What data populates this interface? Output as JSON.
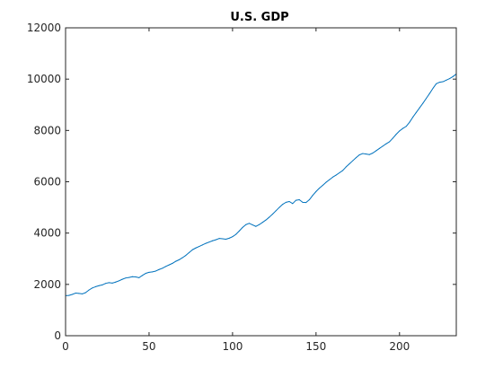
{
  "figure": {
    "background": "#ffffff",
    "axes_color": "#262626",
    "line_color": "#0072bd"
  },
  "chart_data": {
    "type": "line",
    "title": "U.S. GDP",
    "xlabel": "",
    "ylabel": "",
    "xlim": [
      0,
      234
    ],
    "ylim": [
      0,
      12000
    ],
    "x_ticks": [
      0,
      50,
      100,
      150,
      200
    ],
    "y_ticks": [
      0,
      2000,
      4000,
      6000,
      8000,
      10000,
      12000
    ],
    "grid": false,
    "legend": "none",
    "series": [
      {
        "x": [
          0,
          2,
          4,
          6,
          8,
          10,
          12,
          14,
          16,
          18,
          20,
          22,
          24,
          26,
          28,
          30,
          32,
          34,
          36,
          38,
          40,
          42,
          44,
          46,
          48,
          50,
          52,
          54,
          56,
          58,
          60,
          62,
          64,
          66,
          68,
          70,
          72,
          74,
          76,
          78,
          80,
          82,
          84,
          86,
          88,
          90,
          92,
          94,
          96,
          98,
          100,
          102,
          104,
          106,
          108,
          110,
          112,
          114,
          116,
          118,
          120,
          122,
          124,
          126,
          128,
          130,
          132,
          134,
          136,
          138,
          140,
          142,
          144,
          146,
          148,
          150,
          152,
          154,
          156,
          158,
          160,
          162,
          164,
          166,
          168,
          170,
          172,
          174,
          176,
          178,
          180,
          182,
          184,
          186,
          188,
          190,
          192,
          194,
          196,
          198,
          200,
          202,
          204,
          206,
          208,
          210,
          212,
          214,
          216,
          218,
          220,
          222,
          224,
          226,
          228,
          230,
          232,
          234
        ],
        "values": [
          1560,
          1570,
          1610,
          1660,
          1650,
          1630,
          1680,
          1780,
          1860,
          1910,
          1950,
          1980,
          2040,
          2070,
          2050,
          2090,
          2140,
          2200,
          2250,
          2270,
          2300,
          2290,
          2260,
          2350,
          2430,
          2470,
          2490,
          2520,
          2580,
          2630,
          2700,
          2760,
          2820,
          2900,
          2960,
          3040,
          3130,
          3240,
          3350,
          3420,
          3480,
          3540,
          3600,
          3650,
          3700,
          3740,
          3790,
          3780,
          3760,
          3800,
          3860,
          3950,
          4080,
          4220,
          4330,
          4380,
          4320,
          4260,
          4330,
          4420,
          4510,
          4620,
          4740,
          4870,
          5000,
          5120,
          5200,
          5230,
          5150,
          5280,
          5300,
          5200,
          5190,
          5300,
          5470,
          5620,
          5750,
          5860,
          5980,
          6080,
          6180,
          6260,
          6350,
          6440,
          6580,
          6700,
          6820,
          6940,
          7050,
          7100,
          7080,
          7060,
          7120,
          7210,
          7300,
          7390,
          7480,
          7560,
          7700,
          7850,
          7980,
          8080,
          8160,
          8320,
          8520,
          8700,
          8880,
          9060,
          9250,
          9440,
          9640,
          9820,
          9880,
          9900,
          9960,
          10020,
          10100,
          10200
        ]
      }
    ]
  }
}
